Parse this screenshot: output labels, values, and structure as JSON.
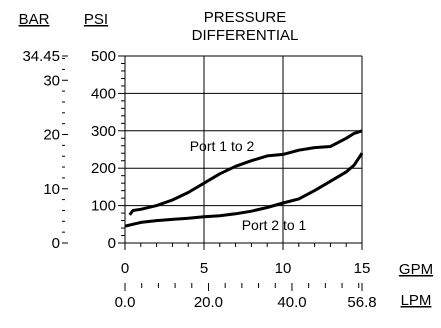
{
  "chart_data": {
    "type": "line",
    "title_lines": [
      "PRESSURE",
      "DIFFERENTIAL"
    ],
    "left_unit_label": "BAR",
    "psi_unit_label": "PSI",
    "x_unit_label": "GPM",
    "x2_unit_label": "LPM",
    "bar_ticks": [
      {
        "label": "34.45",
        "psi": 500
      },
      {
        "label": "30",
        "psi": 435.1
      },
      {
        "label": "20",
        "psi": 290.1
      },
      {
        "label": "10",
        "psi": 145.0
      },
      {
        "label": "0",
        "psi": 0
      }
    ],
    "psi_ticks": [
      "0",
      "100",
      "200",
      "300",
      "400",
      "500"
    ],
    "gpm_ticks": [
      "0",
      "5",
      "10",
      "15"
    ],
    "lpm_ticks": [
      {
        "label": "0.0",
        "gpm": 0
      },
      {
        "label": "20.0",
        "gpm": 5.28
      },
      {
        "label": "40.0",
        "gpm": 10.57
      },
      {
        "label": "56.8",
        "gpm": 15
      }
    ],
    "xlim": [
      0,
      15
    ],
    "ylim": [
      0,
      500
    ],
    "grid": true,
    "series": [
      {
        "name": "Port 1 to 2",
        "x": [
          0.3,
          0.5,
          1,
          2,
          3,
          4,
          5,
          6,
          7,
          8,
          9,
          10,
          11,
          12,
          13,
          14,
          14.5,
          15
        ],
        "y": [
          75,
          87,
          90,
          100,
          115,
          135,
          160,
          185,
          205,
          220,
          233,
          237,
          248,
          255,
          258,
          280,
          293,
          300
        ]
      },
      {
        "name": "Port 2 to 1",
        "x": [
          0,
          1,
          2,
          3,
          4,
          5,
          6,
          7,
          8,
          9,
          10,
          11,
          12,
          13,
          14,
          14.5,
          15
        ],
        "y": [
          45,
          55,
          60,
          63,
          66,
          70,
          73,
          78,
          85,
          95,
          107,
          118,
          140,
          165,
          190,
          208,
          240
        ]
      }
    ]
  }
}
